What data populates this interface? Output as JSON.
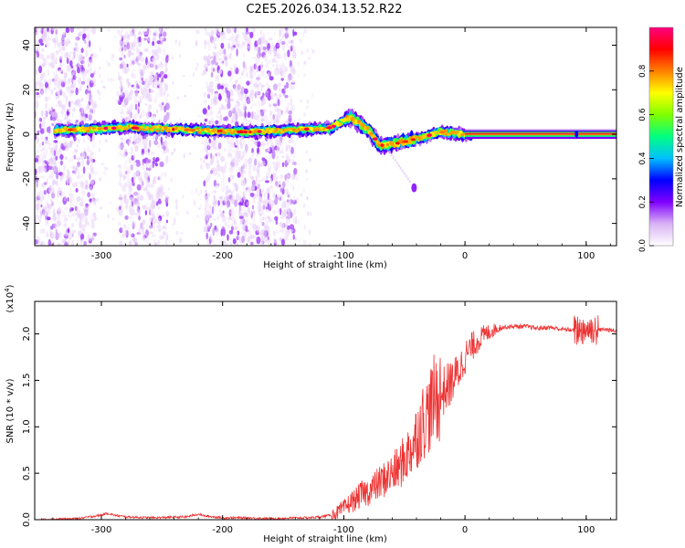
{
  "title": "C2E5.2026.034.13.52.R22",
  "chart_data": [
    {
      "type": "heatmap",
      "title": "C2E5.2026.034.13.52.R22",
      "xlabel": "Height of straight line (km)",
      "ylabel": "Frequency (Hz)",
      "xlim": [
        -355,
        125
      ],
      "ylim": [
        -50,
        48
      ],
      "x_ticks": [
        -300,
        -200,
        -100,
        0,
        100
      ],
      "x_tick_labels": [
        "-300",
        "-200",
        "-100",
        "0",
        "100"
      ],
      "y_ticks": [
        -40,
        -20,
        0,
        20,
        40
      ],
      "y_tick_labels": [
        "-40",
        "-20",
        "0",
        "20",
        "40"
      ],
      "colorbar": {
        "label": "Normalized spectral amplitude",
        "range": [
          0,
          1
        ],
        "ticks": [
          0.0,
          0.2,
          0.4,
          0.6,
          0.8
        ],
        "tick_labels": [
          "0.0",
          "0.2",
          "0.4",
          "0.6",
          "0.8"
        ],
        "colors": [
          "#ffffff",
          "#d9b3f5",
          "#8000ff",
          "#0000ff",
          "#00c0ff",
          "#00ff80",
          "#80ff00",
          "#ffff00",
          "#ff8000",
          "#ff0000",
          "#ff0080"
        ]
      },
      "description_features": {
        "noise_bands_x": [
          [
            -355,
            -305
          ],
          [
            -285,
            -245
          ],
          [
            -215,
            -140
          ]
        ],
        "ridge": [
          {
            "x": -330,
            "f": 2
          },
          {
            "x": -280,
            "f": 3
          },
          {
            "x": -230,
            "f": 2
          },
          {
            "x": -180,
            "f": 1
          },
          {
            "x": -140,
            "f": 2
          },
          {
            "x": -110,
            "f": 3
          },
          {
            "x": -95,
            "f": 8
          },
          {
            "x": -80,
            "f": 2
          },
          {
            "x": -70,
            "f": -5
          },
          {
            "x": -55,
            "f": -4
          },
          {
            "x": -40,
            "f": -2
          },
          {
            "x": -20,
            "f": 1
          },
          {
            "x": 0,
            "f": 0
          },
          {
            "x": 125,
            "f": 0
          }
        ],
        "isolated_blob": {
          "x": -42,
          "f": -24
        }
      }
    },
    {
      "type": "line",
      "xlabel": "Height of straight line (km)",
      "ylabel": "SNR (10 * v/v)",
      "y_multiplier_label": "(x10",
      "y_multiplier_exponent": "4",
      "xlim": [
        -355,
        125
      ],
      "ylim": [
        0,
        2.35
      ],
      "x_ticks": [
        -300,
        -200,
        -100,
        0,
        100
      ],
      "x_tick_labels": [
        "-300",
        "-200",
        "-100",
        "0",
        "100"
      ],
      "y_ticks": [
        0.0,
        0.5,
        1.0,
        1.5,
        2.0
      ],
      "y_tick_labels": [
        "0.0",
        "0.5",
        "1.0",
        "1.5",
        "2.0"
      ],
      "color": "#ee3333",
      "series": [
        {
          "x": [
            -355,
            -320,
            -300,
            -295,
            -290,
            -280,
            -260,
            -230,
            -220,
            -215,
            -200,
            -180,
            -160,
            -140,
            -130,
            -120,
            -110,
            -105,
            -100,
            -95,
            -90,
            -85,
            -80,
            -75,
            -70,
            -65,
            -60,
            -55,
            -50,
            -45,
            -40,
            -35,
            -30,
            -25,
            -20,
            -15,
            -10,
            -5,
            0,
            5,
            10,
            15,
            20,
            25,
            30,
            40,
            50,
            60,
            70,
            80,
            90,
            95,
            100,
            105,
            110,
            115,
            120,
            125
          ],
          "y": [
            0.0,
            0.01,
            0.05,
            0.07,
            0.05,
            0.03,
            0.02,
            0.03,
            0.06,
            0.04,
            0.02,
            0.02,
            0.01,
            0.02,
            0.02,
            0.03,
            0.05,
            0.08,
            0.12,
            0.18,
            0.22,
            0.28,
            0.3,
            0.35,
            0.4,
            0.45,
            0.5,
            0.55,
            0.65,
            0.75,
            0.9,
            1.05,
            1.15,
            1.3,
            1.35,
            1.42,
            1.5,
            1.6,
            1.75,
            1.85,
            1.92,
            1.98,
            2.02,
            2.05,
            2.07,
            2.08,
            2.08,
            2.06,
            2.07,
            2.05,
            2.04,
            2.05,
            2.06,
            2.05,
            2.04,
            2.05,
            2.04,
            2.03
          ]
        }
      ]
    }
  ]
}
